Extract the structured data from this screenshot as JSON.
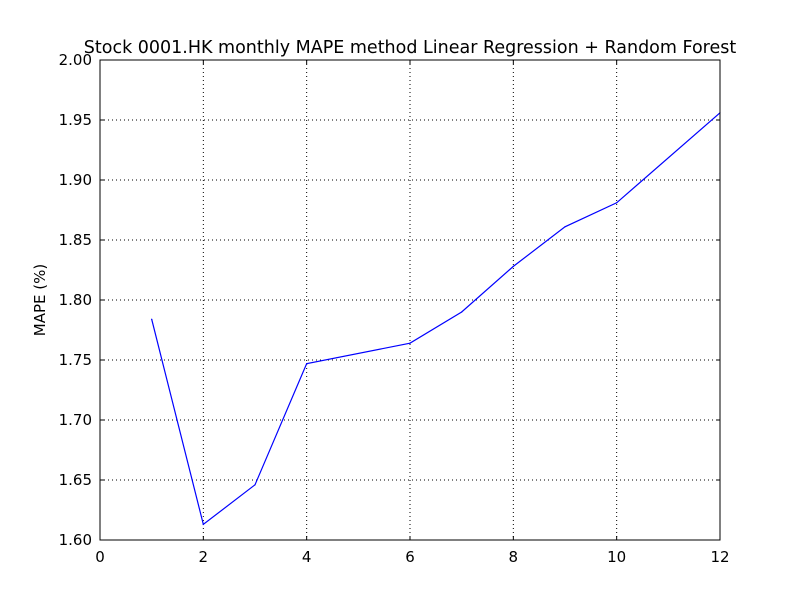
{
  "chart_data": {
    "type": "line",
    "title": "Stock 0001.HK monthly MAPE method Linear Regression + Random Forest",
    "xlabel": "",
    "ylabel": "MAPE (%)",
    "xlim": [
      0,
      12
    ],
    "ylim": [
      1.6,
      2.0
    ],
    "xticks": [
      0,
      2,
      4,
      6,
      8,
      10,
      12
    ],
    "xtick_labels": [
      "0",
      "2",
      "4",
      "6",
      "8",
      "10",
      "12"
    ],
    "yticks": [
      1.6,
      1.65,
      1.7,
      1.75,
      1.8,
      1.85,
      1.9,
      1.95,
      2.0
    ],
    "ytick_labels": [
      "1.60",
      "1.65",
      "1.70",
      "1.75",
      "1.80",
      "1.85",
      "1.90",
      "1.95",
      "2.00"
    ],
    "grid": true,
    "legend": "none",
    "series": [
      {
        "color": "#0000ff",
        "x": [
          1,
          2,
          3,
          4,
          6,
          7,
          8,
          9,
          10,
          12
        ],
        "y": [
          1.784,
          1.613,
          1.646,
          1.747,
          1.764,
          1.79,
          1.828,
          1.861,
          1.881,
          1.956
        ]
      }
    ]
  }
}
